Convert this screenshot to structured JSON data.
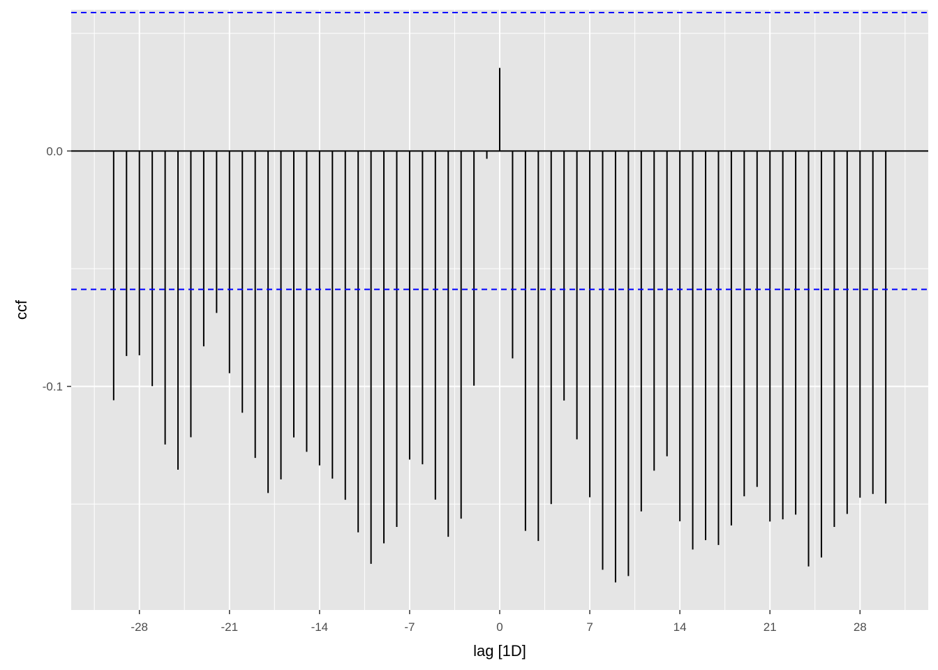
{
  "chart_data": {
    "type": "bar",
    "title": "",
    "xlabel": "lag [1D]",
    "ylabel": "ccf",
    "x_ticks": [
      -28,
      -21,
      -14,
      -7,
      0,
      7,
      14,
      21,
      28
    ],
    "y_ticks": [
      -0.1,
      0.0
    ],
    "y_tick_labels": [
      "-0.1",
      "0.0"
    ],
    "xlim": [
      -33.3,
      33.3
    ],
    "ylim": [
      -0.195,
      0.06
    ],
    "grid": true,
    "legend": "none",
    "confidence_bounds": [
      0.0588,
      -0.0588
    ],
    "colors": {
      "panel": "#e5e5e5",
      "grid": "#ffffff",
      "bars": "#000000",
      "bounds": "#0000ff"
    },
    "series": [
      {
        "lags": [
          -30,
          -29,
          -28,
          -27,
          -26,
          -25,
          -24,
          -23,
          -22,
          -21,
          -20,
          -19,
          -18,
          -17,
          -16,
          -15,
          -14,
          -13,
          -12,
          -11,
          -10,
          -9,
          -8,
          -7,
          -6,
          -5,
          -4,
          -3,
          -2,
          -1,
          0,
          1,
          2,
          3,
          4,
          5,
          6,
          7,
          8,
          9,
          10,
          11,
          12,
          13,
          14,
          15,
          16,
          17,
          18,
          19,
          20,
          21,
          22,
          23,
          24,
          25,
          26,
          27,
          28,
          29,
          30
        ],
        "values": [
          -0.1059,
          -0.0871,
          -0.0868,
          -0.0999,
          -0.1247,
          -0.1354,
          -0.1216,
          -0.083,
          -0.0688,
          -0.0944,
          -0.1112,
          -0.1304,
          -0.1453,
          -0.1395,
          -0.1217,
          -0.1278,
          -0.1336,
          -0.1392,
          -0.1482,
          -0.162,
          -0.1754,
          -0.1667,
          -0.1597,
          -0.1311,
          -0.1331,
          -0.1481,
          -0.1639,
          -0.1562,
          -0.0997,
          -0.0033,
          0.0353,
          -0.0881,
          -0.1614,
          -0.1657,
          -0.15,
          -0.106,
          -0.1225,
          -0.1471,
          -0.1779,
          -0.1833,
          -0.1806,
          -0.1531,
          -0.1358,
          -0.1297,
          -0.1573,
          -0.1693,
          -0.1653,
          -0.1674,
          -0.1591,
          -0.1467,
          -0.1427,
          -0.1574,
          -0.1565,
          -0.1545,
          -0.1765,
          -0.1727,
          -0.1597,
          -0.1542,
          -0.1473,
          -0.1457,
          -0.1498
        ]
      }
    ]
  }
}
